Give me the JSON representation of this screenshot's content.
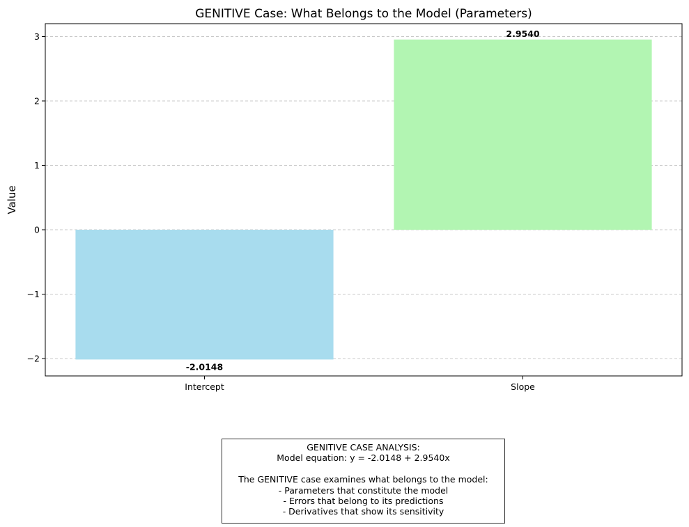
{
  "chart_data": {
    "type": "bar",
    "title": "GENITIVE Case: What Belongs to the Model (Parameters)",
    "xlabel": "",
    "ylabel": "Value",
    "categories": [
      "Intercept",
      "Slope"
    ],
    "values": [
      -2.0148,
      2.954
    ],
    "value_labels": [
      "-2.0148",
      "2.9540"
    ],
    "colors": [
      "#a8dcee",
      "#b2f5b2"
    ],
    "ylim": [
      -2.27,
      3.2
    ],
    "yticks": [
      -2,
      -1,
      0,
      1,
      2,
      3
    ],
    "ytick_labels": [
      "−2",
      "−1",
      "0",
      "1",
      "2",
      "3"
    ],
    "grid": "y-dashed",
    "legend": "none"
  },
  "annotation": {
    "lines": [
      "GENITIVE CASE ANALYSIS:",
      "Model equation: y = -2.0148 + 2.9540x",
      "",
      "The GENITIVE case examines what belongs to the model:",
      "- Parameters that constitute the model",
      "- Errors that belong to its predictions",
      "- Derivatives that show its sensitivity"
    ]
  }
}
